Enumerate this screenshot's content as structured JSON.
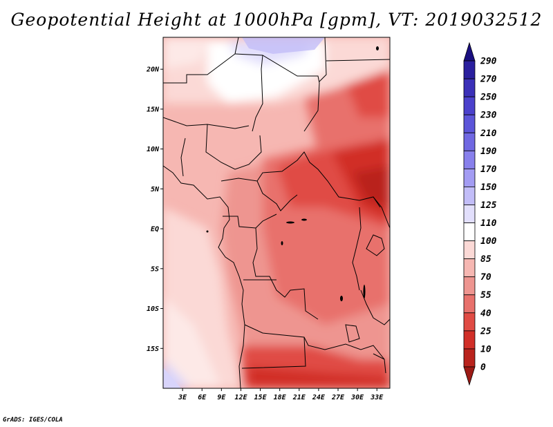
{
  "title": "Geopotential Height at 1000hPa [gpm], VT: 2019032512",
  "credit": "GrADS: IGES/COLA",
  "map": {
    "lon_range": [
      0,
      35
    ],
    "lat_range": [
      -20,
      24
    ],
    "lat_ticks": [
      {
        "value": 20,
        "label": "20N"
      },
      {
        "value": 15,
        "label": "15N"
      },
      {
        "value": 10,
        "label": "10N"
      },
      {
        "value": 5,
        "label": "5N"
      },
      {
        "value": 0,
        "label": "EQ"
      },
      {
        "value": -5,
        "label": "5S"
      },
      {
        "value": -10,
        "label": "10S"
      },
      {
        "value": -15,
        "label": "15S"
      }
    ],
    "lon_ticks": [
      {
        "value": 3,
        "label": "3E"
      },
      {
        "value": 6,
        "label": "6E"
      },
      {
        "value": 9,
        "label": "9E"
      },
      {
        "value": 12,
        "label": "12E"
      },
      {
        "value": 15,
        "label": "15E"
      },
      {
        "value": 18,
        "label": "18E"
      },
      {
        "value": 21,
        "label": "21E"
      },
      {
        "value": 24,
        "label": "24E"
      },
      {
        "value": 27,
        "label": "27E"
      },
      {
        "value": 30,
        "label": "30E"
      },
      {
        "value": 33,
        "label": "33E"
      }
    ]
  },
  "colorbar": {
    "levels": [
      "290",
      "270",
      "250",
      "230",
      "210",
      "190",
      "170",
      "150",
      "125",
      "110",
      "100",
      "85",
      "70",
      "55",
      "40",
      "25",
      "10",
      "0"
    ],
    "colors": [
      "#1a0f80",
      "#2a1f9e",
      "#3b30b8",
      "#4b41cc",
      "#5c55d9",
      "#7068e2",
      "#8880ec",
      "#a39cf3",
      "#c2bdf8",
      "#e2dffc",
      "#ffffff",
      "#fbd9d6",
      "#f6b7b2",
      "#ee9590",
      "#e8716c",
      "#e04b44",
      "#d12f28",
      "#b9231d",
      "#9c1a15"
    ]
  }
}
